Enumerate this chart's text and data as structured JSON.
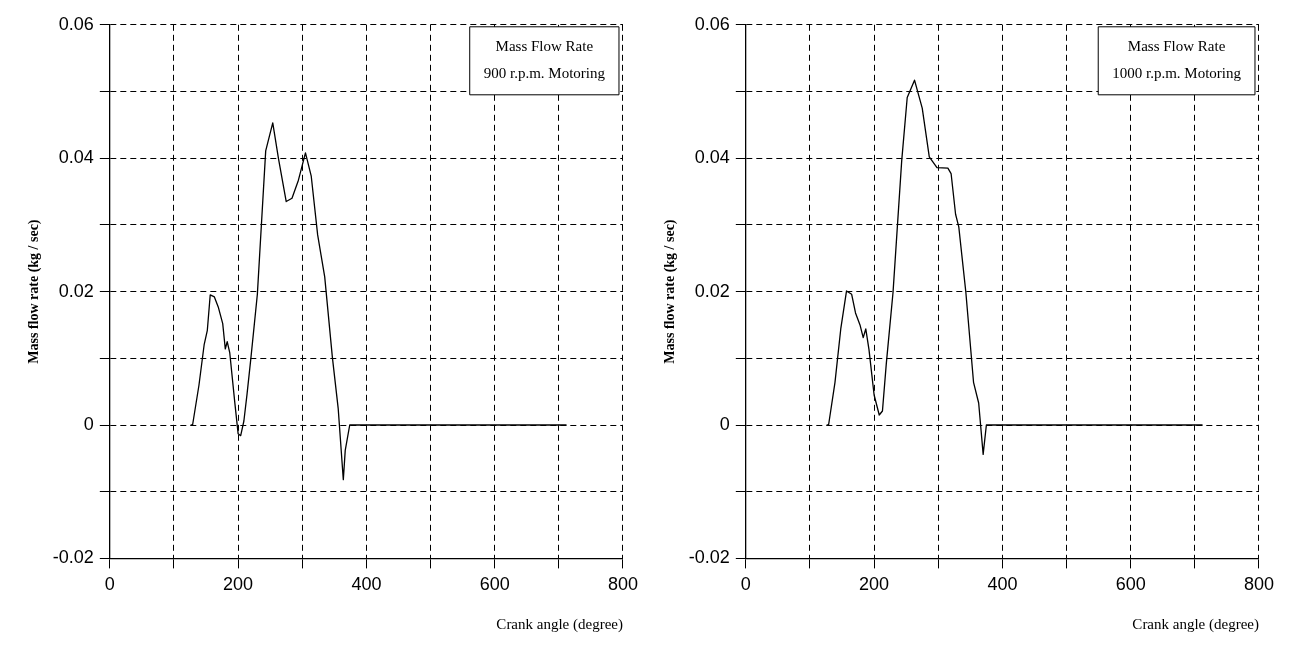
{
  "chart_data": [
    {
      "type": "line",
      "xlabel": "Crank angle (degree)",
      "ylabel": "Mass flow rate (kg / sec)",
      "annotations": [
        "Mass Flow Rate\n900 r.p.m. Motoring"
      ],
      "xlim": [
        0,
        800
      ],
      "ylim": [
        -0.02,
        0.06
      ],
      "xticks": [
        0,
        {
          "value": 100,
          "label": null
        },
        200,
        {
          "value": 300,
          "label": null
        },
        400,
        {
          "value": 500,
          "label": null
        },
        600,
        {
          "value": 700,
          "label": null
        },
        800
      ],
      "yticks": [
        -0.02,
        {
          "value": -0.01,
          "label": null
        },
        0,
        {
          "value": 0.01,
          "label": null
        },
        0.02,
        {
          "value": 0.03,
          "label": null
        },
        0.04,
        {
          "value": 0.05,
          "label": null
        },
        0.06
      ],
      "grid": true,
      "marker": "none",
      "line_style": "solid",
      "series": [
        {
          "color": "#000000",
          "x": [
            126,
            129,
            139,
            147,
            152,
            156.5,
            163,
            169,
            176,
            180,
            183,
            187,
            195,
            200,
            204,
            209,
            214,
            220,
            230,
            243,
            254,
            263,
            275,
            284,
            294,
            305,
            314,
            324,
            335,
            347,
            356,
            364,
            367,
            374,
            712
          ],
          "values": [
            0,
            0,
            0.006,
            0.012,
            0.0142,
            0.0195,
            0.0192,
            0.0177,
            0.0152,
            0.0114,
            0.0125,
            0.0108,
            0.0032,
            -0.0013,
            -0.0016,
            0.0006,
            0.0047,
            0.0101,
            0.0196,
            0.0411,
            0.0453,
            0.0399,
            0.0335,
            0.034,
            0.0367,
            0.0408,
            0.0373,
            0.0285,
            0.0222,
            0.0101,
            0.0025,
            -0.0082,
            -0.0038,
            0,
            0
          ]
        }
      ]
    },
    {
      "type": "line",
      "xlabel": "Crank angle (degree)",
      "ylabel": "Mass flow rate (kg / sec)",
      "annotations": [
        "Mass Flow Rate\n1000 r.p.m. Motoring"
      ],
      "xlim": [
        0,
        800
      ],
      "ylim": [
        -0.02,
        0.06
      ],
      "xticks": [
        0,
        {
          "value": 100,
          "label": null
        },
        200,
        {
          "value": 300,
          "label": null
        },
        400,
        {
          "value": 500,
          "label": null
        },
        600,
        {
          "value": 700,
          "label": null
        },
        800
      ],
      "yticks": [
        -0.02,
        {
          "value": -0.01,
          "label": null
        },
        0,
        {
          "value": 0.01,
          "label": null
        },
        0.02,
        {
          "value": 0.03,
          "label": null
        },
        0.04,
        {
          "value": 0.05,
          "label": null
        },
        0.06
      ],
      "grid": true,
      "marker": "none",
      "line_style": "solid",
      "series": [
        {
          "color": "#000000",
          "x": [
            126,
            129,
            139,
            148,
            157,
            165,
            171,
            178,
            183,
            187,
            192,
            200,
            208,
            213,
            219,
            229.5,
            243,
            251.6,
            263,
            275,
            286,
            298,
            315,
            320,
            327,
            332,
            343,
            355,
            363,
            370,
            375,
            712
          ],
          "values": [
            0,
            0,
            0.0064,
            0.0144,
            0.0201,
            0.0196,
            0.0168,
            0.015,
            0.0131,
            0.0144,
            0.0113,
            0.0045,
            0.0015,
            0.0021,
            0.0092,
            0.0199,
            0.0396,
            0.0491,
            0.0517,
            0.0475,
            0.0402,
            0.0386,
            0.0385,
            0.0377,
            0.0316,
            0.0297,
            0.0199,
            0.0064,
            0.0033,
            -0.0044,
            0,
            0
          ]
        }
      ]
    }
  ]
}
